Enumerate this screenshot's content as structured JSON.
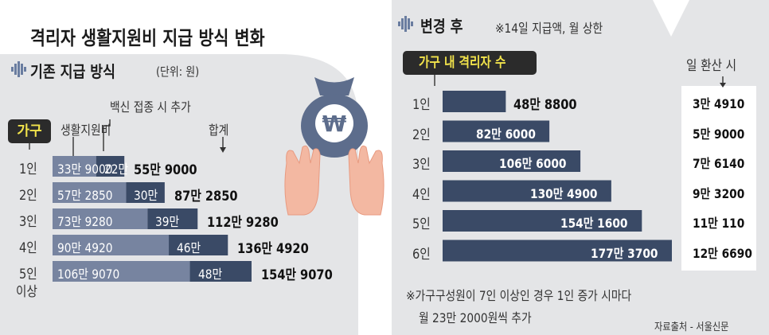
{
  "title": "격리자 생활지원비 지급 방식 변화",
  "old": {
    "heading": "기존 지급 방식",
    "unit": "(단위: 원)",
    "household_pill": "가구",
    "col_living": "생활지원비",
    "col_vaccine": "백신 접종 시 추가",
    "col_total": "합계",
    "rows": [
      {
        "label": "1인",
        "living": "33만 9000",
        "extra": "22만",
        "total": "55만 9000",
        "living_value": 339000,
        "extra_value": 220000
      },
      {
        "label": "2인",
        "living": "57만 2850",
        "extra": "30만",
        "total": "87만 2850",
        "living_value": 572850,
        "extra_value": 300000
      },
      {
        "label": "3인",
        "living": "73만 9280",
        "extra": "39만",
        "total": "112만 9280",
        "living_value": 739280,
        "extra_value": 390000
      },
      {
        "label": "4인",
        "living": "90만 4920",
        "extra": "46만",
        "total": "136만 4920",
        "living_value": 904920,
        "extra_value": 460000
      },
      {
        "label": "5인",
        "label2": "이상",
        "living": "106만 9070",
        "extra": "48만",
        "total": "154만 9070",
        "living_value": 1069070,
        "extra_value": 480000
      }
    ]
  },
  "new": {
    "heading": "변경 후",
    "note": "※14일 지급액, 월 상한",
    "household_pill": "가구 내 격리자 수",
    "col_daily": "일 환산 시",
    "rows": [
      {
        "label": "1인",
        "amount": "48만 8800",
        "daily": "3만 4910",
        "value": 488800
      },
      {
        "label": "2인",
        "amount": "82만 6000",
        "daily": "5만 9000",
        "value": 826000
      },
      {
        "label": "3인",
        "amount": "106만 6000",
        "daily": "7만 6140",
        "value": 1066000
      },
      {
        "label": "4인",
        "amount": "130만 4900",
        "daily": "9만 3200",
        "value": 1304900
      },
      {
        "label": "5인",
        "amount": "154만 1600",
        "daily": "11만 110",
        "value": 1541600
      },
      {
        "label": "6인",
        "amount": "177만 3700",
        "daily": "12만 6690",
        "value": 1773700
      }
    ],
    "footnote1": "※가구구성원이 7인 이상인 경우 1인 증가 시마다",
    "footnote2": "월 23만 2000원씩 추가",
    "credit": "자료출처 - 서울신문"
  },
  "colors": {
    "left_bg": "#e4e5e7",
    "right_bg": "#e4e5e7",
    "bar_dark": "#3a4a66",
    "bar_light": "#7784a0",
    "pill_text": "#f2e34b",
    "money_bag": "#5d6d8c",
    "hands": "#f3b8a2"
  },
  "chart_data": [
    {
      "type": "bar",
      "title": "기존 지급 방식",
      "categories": [
        "1인",
        "2인",
        "3인",
        "4인",
        "5인 이상"
      ],
      "series": [
        {
          "name": "생활지원비",
          "values": [
            339000,
            572850,
            739280,
            904920,
            1069070
          ]
        },
        {
          "name": "백신 접종 시 추가",
          "values": [
            220000,
            300000,
            390000,
            460000,
            480000
          ]
        }
      ],
      "totals": [
        559000,
        872850,
        1129280,
        1364920,
        1549070
      ],
      "stacked": true,
      "orientation": "horizontal",
      "unit": "원"
    },
    {
      "type": "bar",
      "title": "변경 후",
      "categories": [
        "1인",
        "2인",
        "3인",
        "4인",
        "5인",
        "6인"
      ],
      "series": [
        {
          "name": "",
          "values": [
            488800,
            826000,
            1066000,
            1304900,
            1541600,
            1773700
          ]
        },
        {
          "name": "일 환산 시",
          "values": [
            34910,
            59000,
            76140,
            93200,
            110110,
            126690
          ]
        }
      ],
      "orientation": "horizontal",
      "unit": "원"
    }
  ]
}
